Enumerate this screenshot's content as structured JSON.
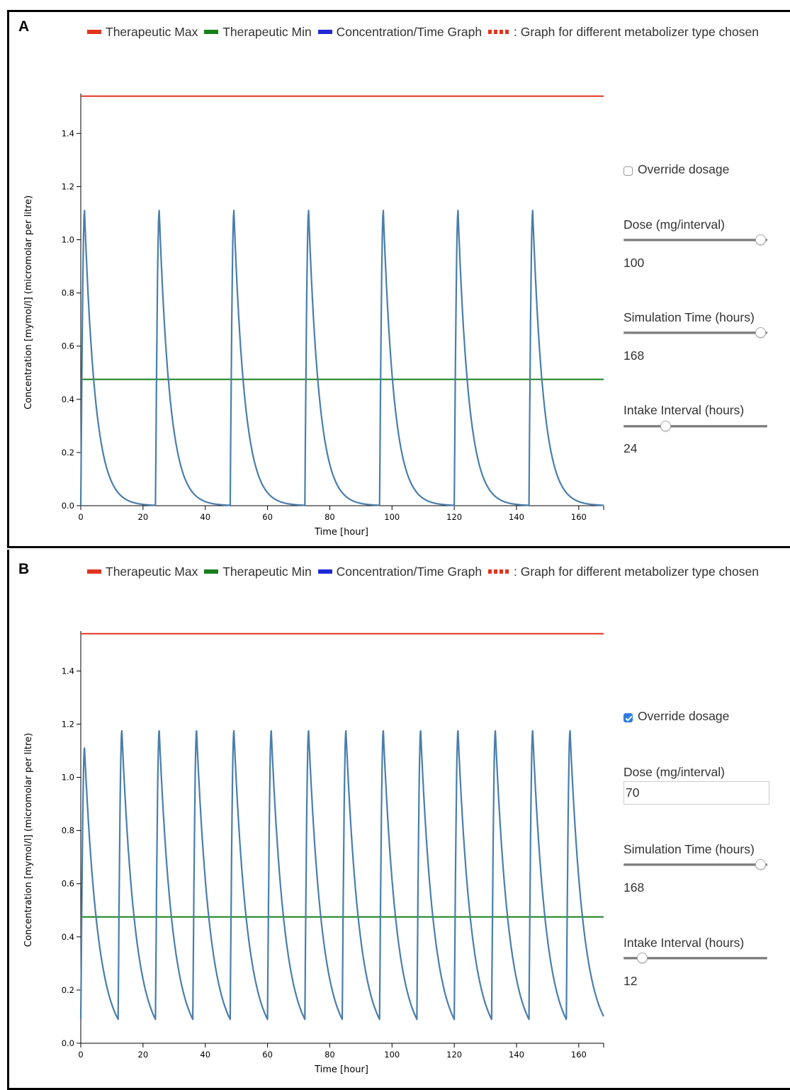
{
  "colors": {
    "therapeutic_max": "#e1341e",
    "therapeutic_min": "#16801b",
    "concentration_legend": "#1f2ad6",
    "curve": "#4a7eab"
  },
  "panels": [
    {
      "letter": "A",
      "legend": {
        "max": "Therapeutic Max",
        "min": "Therapeutic Min",
        "graph": "Concentration/Time Graph",
        "metabolizer": ": Graph for different metabolizer type chosen"
      },
      "controls": {
        "override_label": "Override dosage",
        "override_checked": false,
        "dose_label": "Dose (mg/interval)",
        "dose_value": "100",
        "dose_slider_fraction": 0.95,
        "sim_label": "Simulation Time (hours)",
        "sim_value": "168",
        "sim_slider_fraction": 0.95,
        "interval_label": "Intake Interval (hours)",
        "interval_value": "24",
        "interval_slider_fraction": 0.29
      }
    },
    {
      "letter": "B",
      "legend": {
        "max": "Therapeutic Max",
        "min": "Therapeutic Min",
        "graph": "Concentration/Time Graph",
        "metabolizer": ": Graph for different metabolizer type chosen"
      },
      "controls": {
        "override_label": "Override dosage",
        "override_checked": true,
        "dose_label": "Dose (mg/interval)",
        "dose_value": "70",
        "sim_label": "Simulation Time (hours)",
        "sim_value": "168",
        "sim_slider_fraction": 0.95,
        "interval_label": "Intake Interval (hours)",
        "interval_value": "12",
        "interval_slider_fraction": 0.13
      }
    }
  ],
  "chart_data": [
    {
      "type": "line",
      "xlabel": "Time [hour]",
      "ylabel": "Concentration [mymol/l] (micromolar per litre)",
      "xlim": [
        0,
        168
      ],
      "ylim": [
        0,
        1.55
      ],
      "xticks": [
        "0",
        "20",
        "40",
        "60",
        "80",
        "100",
        "120",
        "140",
        "160"
      ],
      "yticks": [
        "0.0",
        "0.2",
        "0.4",
        "0.6",
        "0.8",
        "1.0",
        "1.2",
        "1.4"
      ],
      "therapeutic_max": 1.54,
      "therapeutic_min": 0.475,
      "dose_interval": 24,
      "peak": 1.11,
      "peak_time_after_dose": 1.2,
      "half_life_hours": 2.4,
      "dose_times": [
        0,
        24,
        48,
        72,
        96,
        120,
        144
      ],
      "peaks": [
        1.11,
        1.11,
        1.11,
        1.11,
        1.11,
        1.11,
        1.11
      ],
      "troughs": [
        0.0,
        0.0,
        0.0,
        0.0,
        0.0,
        0.0,
        0.0
      ]
    },
    {
      "type": "line",
      "xlabel": "Time [hour]",
      "ylabel": "Concentration [mymol/l] (micromolar per litre)",
      "xlim": [
        0,
        168
      ],
      "ylim": [
        0,
        1.55
      ],
      "xticks": [
        "0",
        "20",
        "40",
        "60",
        "80",
        "100",
        "120",
        "140",
        "160"
      ],
      "yticks": [
        "0.0",
        "0.2",
        "0.4",
        "0.6",
        "0.8",
        "1.0",
        "1.2",
        "1.4"
      ],
      "therapeutic_max": 1.54,
      "therapeutic_min": 0.475,
      "dose_interval": 12,
      "peak_first": 1.11,
      "peak": 1.175,
      "trough": 0.09,
      "peak_time_after_dose": 1.2,
      "half_life_hours": 3.05,
      "dose_times": [
        0,
        12,
        24,
        36,
        48,
        60,
        72,
        84,
        96,
        108,
        120,
        132,
        144,
        156
      ],
      "peaks": [
        1.11,
        1.175,
        1.175,
        1.175,
        1.175,
        1.175,
        1.175,
        1.175,
        1.175,
        1.175,
        1.175,
        1.175,
        1.175,
        1.175
      ],
      "troughs": [
        0.09,
        0.09,
        0.09,
        0.09,
        0.09,
        0.09,
        0.09,
        0.09,
        0.09,
        0.09,
        0.09,
        0.09,
        0.09,
        0.09
      ]
    }
  ]
}
